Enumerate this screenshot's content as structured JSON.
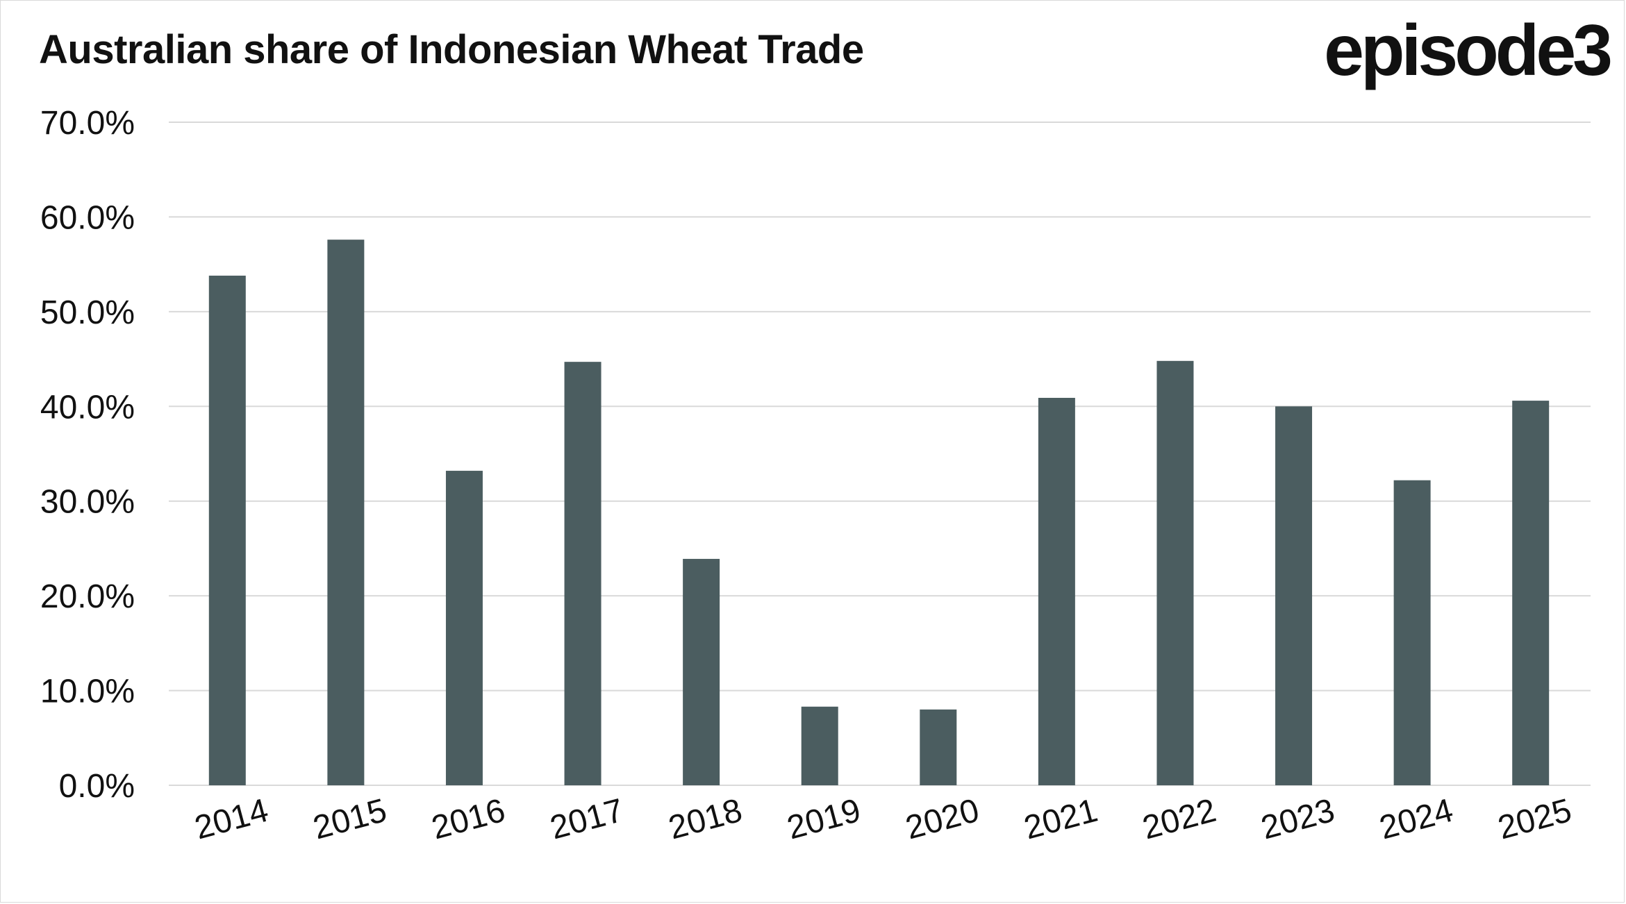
{
  "title": "Australian share of Indonesian Wheat Trade",
  "logo_text": "episode3",
  "colors": {
    "bar": "#4b5d60",
    "grid": "#d9d9d9",
    "text": "#111111"
  },
  "chart_data": {
    "type": "bar",
    "categories": [
      "2014",
      "2015",
      "2016",
      "2017",
      "2018",
      "2019",
      "2020",
      "2021",
      "2022",
      "2023",
      "2024",
      "2025"
    ],
    "series": [
      {
        "values": [
          53.8,
          57.6,
          33.2,
          44.7,
          23.9,
          8.3,
          8.0,
          40.9,
          44.8,
          40.0,
          32.2,
          40.6
        ]
      }
    ],
    "y_ticks": [
      "0.0%",
      "10.0%",
      "20.0%",
      "30.0%",
      "40.0%",
      "50.0%",
      "60.0%",
      "70.0%"
    ],
    "ylim": [
      0,
      70
    ],
    "grid": true,
    "legend": "none"
  }
}
